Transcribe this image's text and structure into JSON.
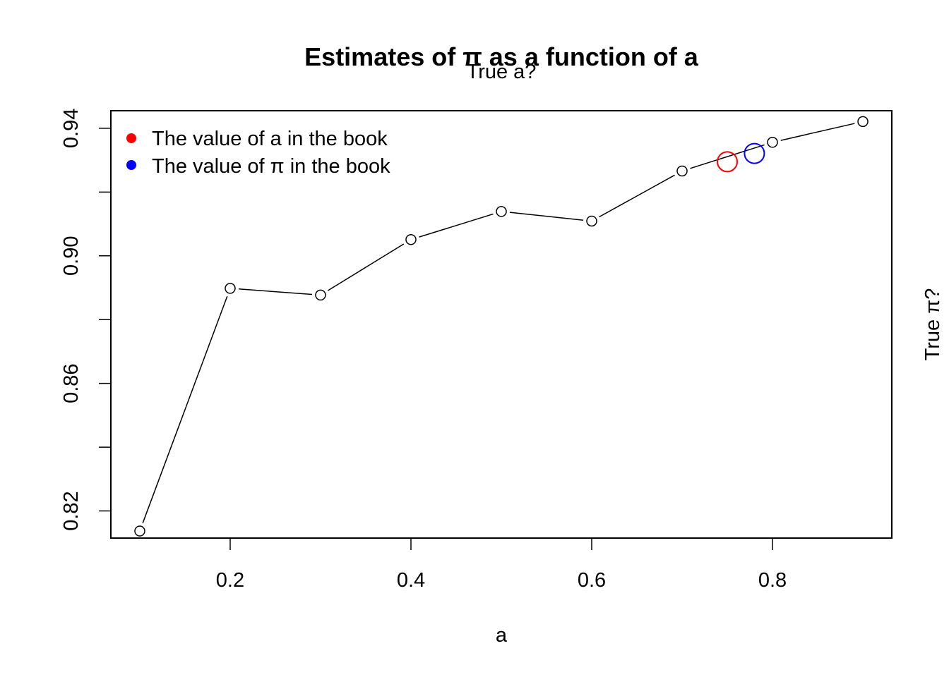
{
  "chart_data": {
    "type": "line",
    "title": "Estimates of π as a function of a",
    "subtitle_top": "True a?",
    "right_label": "True π?",
    "xlabel": "a",
    "ylabel": "",
    "xlim": [
      0.068,
      0.932
    ],
    "ylim": [
      0.8115,
      0.9455
    ],
    "xticks": [
      0.2,
      0.4,
      0.6,
      0.8
    ],
    "xtick_labels": [
      "0.2",
      "0.4",
      "0.6",
      "0.8"
    ],
    "yticks": [
      0.82,
      0.84,
      0.86,
      0.88,
      0.9,
      0.92,
      0.94
    ],
    "ytick_labels": [
      "0.82",
      "",
      "0.86",
      "",
      "0.90",
      "",
      "0.94"
    ],
    "series": [
      {
        "name": "estimates",
        "x": [
          0.1,
          0.2,
          0.3,
          0.4,
          0.5,
          0.6,
          0.7,
          0.8,
          0.9
        ],
        "y": [
          0.8137,
          0.8898,
          0.8877,
          0.9051,
          0.9139,
          0.9109,
          0.9266,
          0.9356,
          0.9421
        ]
      }
    ],
    "highlights": [
      {
        "name": "book-a",
        "x": 0.75,
        "y": 0.9295,
        "color": "#ff0000"
      },
      {
        "name": "book-pi",
        "x": 0.78,
        "y": 0.9321,
        "color": "#0000ff"
      }
    ],
    "legend": {
      "position": "top-left",
      "entries": [
        {
          "label": "The value of a in the book",
          "color": "#ff0000"
        },
        {
          "label": "The value of π in the book",
          "color": "#0000ff"
        }
      ]
    }
  }
}
